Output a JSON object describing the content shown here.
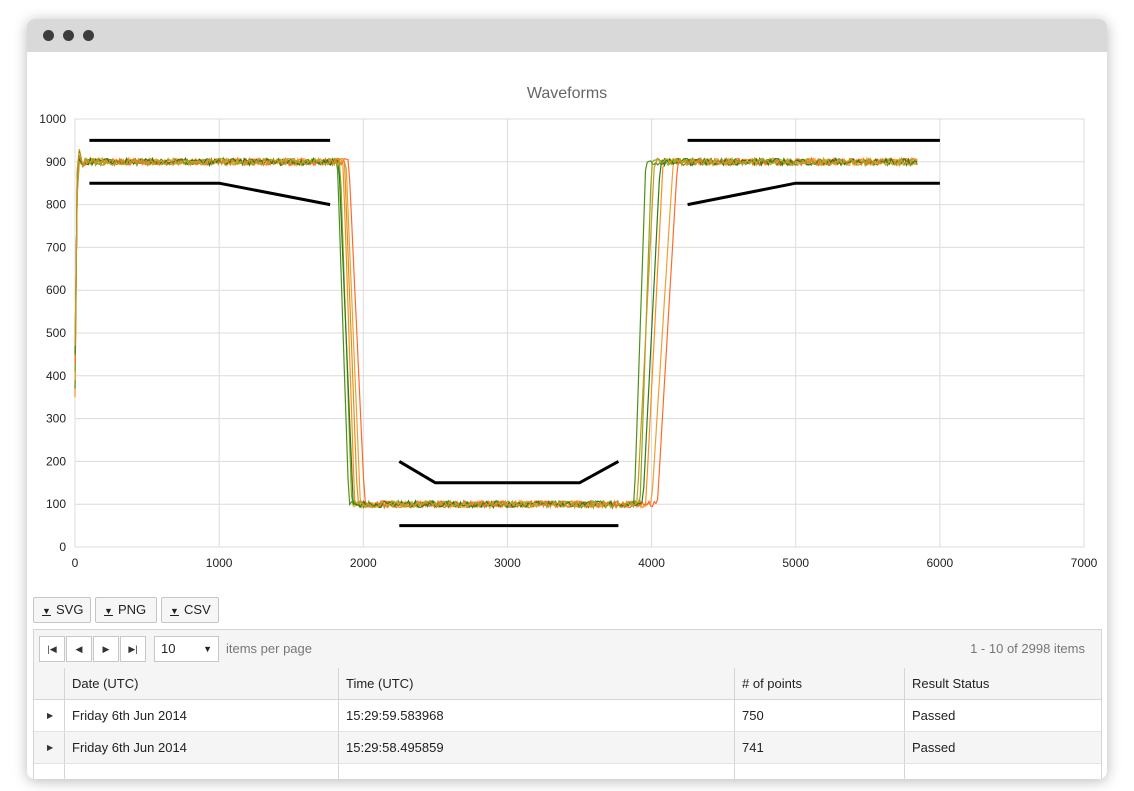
{
  "chart_data": {
    "type": "line",
    "title": "Waveforms",
    "xlim": [
      0,
      7000
    ],
    "ylim": [
      0,
      1000
    ],
    "x_ticks": [
      0,
      1000,
      2000,
      3000,
      4000,
      5000,
      6000,
      7000
    ],
    "y_ticks": [
      0,
      100,
      200,
      300,
      400,
      500,
      600,
      700,
      800,
      900,
      1000
    ],
    "grid": true,
    "series_colors": [
      "#ff8c1a",
      "#4f8f1c",
      "#f0a030",
      "#8aa81c",
      "#ff6a2a",
      "#2f7a1a",
      "#cc9a20"
    ],
    "limit_color": "#000000",
    "limit_lines": [
      [
        [
          100,
          950
        ],
        [
          1770,
          950
        ]
      ],
      [
        [
          100,
          850
        ],
        [
          1000,
          850
        ],
        [
          1770,
          800
        ]
      ],
      [
        [
          2250,
          200
        ],
        [
          2500,
          150
        ],
        [
          3500,
          150
        ],
        [
          3770,
          200
        ]
      ],
      [
        [
          2250,
          50
        ],
        [
          3770,
          50
        ]
      ],
      [
        [
          4250,
          950
        ],
        [
          6000,
          950
        ]
      ],
      [
        [
          4250,
          800
        ],
        [
          5000,
          850
        ],
        [
          6000,
          850
        ]
      ]
    ],
    "waveform_shape": {
      "high_level": 900,
      "low_level": 100,
      "start_value": 350,
      "end_x": 5850,
      "fall_start_x": [
        1860,
        1820,
        1880,
        1840,
        1900,
        1830,
        1870
      ],
      "fall_end_x": [
        1940,
        1900,
        1980,
        1920,
        2010,
        1930,
        1960
      ],
      "rise_start_x": [
        3960,
        3880,
        4000,
        3920,
        4040,
        3940,
        3900
      ],
      "rise_end_x": [
        4080,
        3960,
        4150,
        4000,
        4180,
        4060,
        4020
      ]
    }
  },
  "exports": [
    {
      "label": "SVG",
      "icon": "download-arrow-icon"
    },
    {
      "label": "PNG",
      "icon": "download-arrow-icon"
    },
    {
      "label": "CSV",
      "icon": "download-arrow-icon"
    }
  ],
  "pager": {
    "page_size": "10",
    "items_per_page_label": "items per page",
    "info": "1 - 10 of 2998 items"
  },
  "table": {
    "columns": [
      "Date (UTC)",
      "Time (UTC)",
      "# of points",
      "Result Status"
    ],
    "rows": [
      {
        "date": "Friday 6th Jun 2014",
        "time": "15:29:59.583968",
        "points": "750",
        "status": "Passed"
      },
      {
        "date": "Friday 6th Jun 2014",
        "time": "15:29:58.495859",
        "points": "741",
        "status": "Passed"
      }
    ]
  }
}
